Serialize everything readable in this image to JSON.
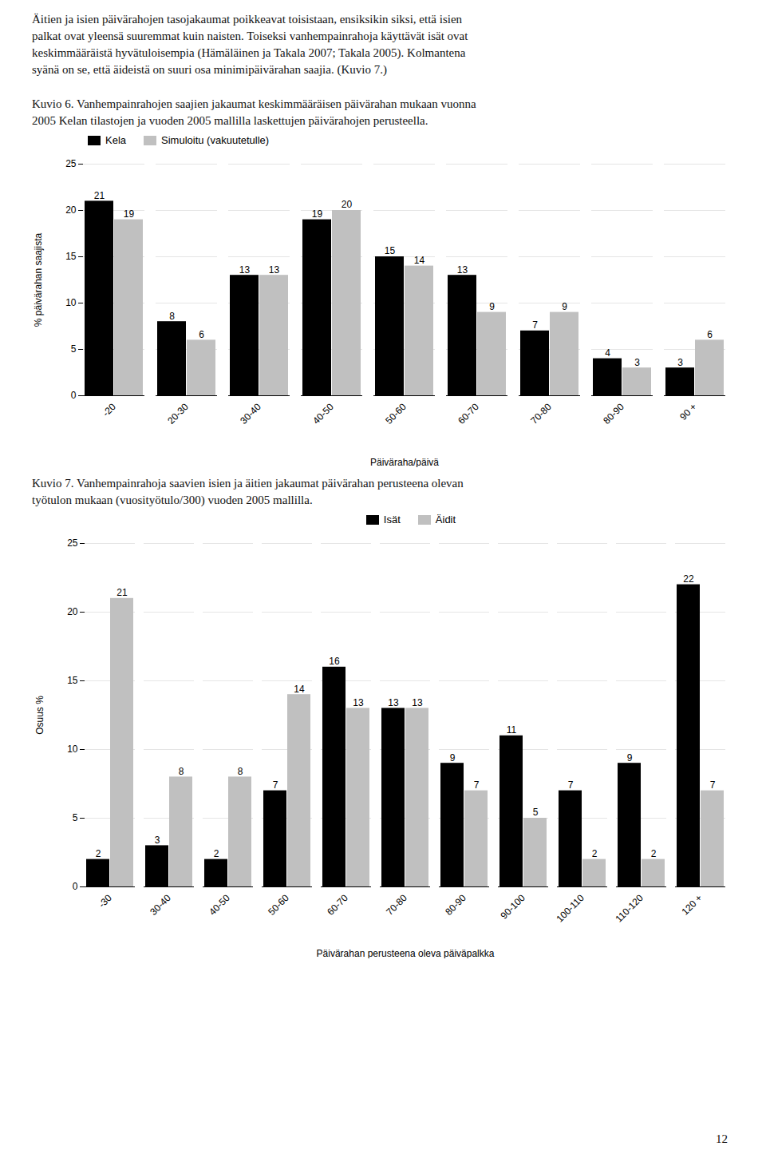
{
  "paragraph": "Äitien ja isien päivärahojen tasojakaumat poikkeavat toisistaan, ensiksikin siksi, että isien\npalkat ovat yleensä suuremmat kuin naisten. Toiseksi vanhempainrahoja käyttävät isät ovat\nkeskimmääräistä hyvätuloisempia (Hämäläinen ja Takala 2007; Takala 2005). Kolmantena\nsyänä on se, että äideistä on suuri osa minimipäivärahan saajia. (Kuvio 7.)",
  "page_number": "12",
  "chart_data": [
    {
      "type": "bar",
      "title": "Kuvio 6. Vanhempainrahojen saajien jakaumat keskimmääräisen päivärahan mukaan vuonna\n2005 Kelan tilastojen ja vuoden 2005 mallilla laskettujen päivärahojen perusteella.",
      "xlabel": "Päiväraha/päivä",
      "ylabel": "% päivärahan saajista",
      "categories": [
        "-20",
        "20-30",
        "30-40",
        "40-50",
        "50-60",
        "60-70",
        "70-80",
        "80-90",
        "90 +"
      ],
      "series": [
        {
          "name": "Kela",
          "color": "#000000",
          "values": [
            21,
            8,
            13,
            19,
            15,
            13,
            7,
            4,
            3
          ]
        },
        {
          "name": "Simuloitu (vakuutetulle)",
          "color": "#c0c0c0",
          "values": [
            19,
            6,
            13,
            20,
            14,
            9,
            9,
            3,
            6
          ]
        }
      ],
      "ylim": [
        0,
        25
      ],
      "yticks": [
        0,
        5,
        10,
        15,
        20,
        25
      ],
      "grid": true,
      "legend": "upper left",
      "data_labels": true
    },
    {
      "type": "bar",
      "title": "Kuvio 7. Vanhempainrahoja saavien isien ja äitien jakaumat päivärahan perusteena olevan\ntyötulon mukaan (vuosityötulo/300) vuoden 2005 mallilla.",
      "xlabel": "Päivärahan perusteena oleva päiväpalkka",
      "ylabel": "Osuus %",
      "categories": [
        "-30",
        "30-40",
        "40-50",
        "50-60",
        "60-70",
        "70-80",
        "80-90",
        "90-100",
        "100-110",
        "110-120",
        "120 +"
      ],
      "series": [
        {
          "name": "Isät",
          "color": "#000000",
          "values": [
            2,
            3,
            2,
            7,
            16,
            13,
            9,
            11,
            7,
            9,
            22
          ]
        },
        {
          "name": "Äidit",
          "color": "#c0c0c0",
          "values": [
            21,
            8,
            8,
            14,
            13,
            13,
            7,
            5,
            2,
            2,
            7
          ]
        }
      ],
      "ylim": [
        0,
        25
      ],
      "yticks": [
        0,
        5,
        10,
        15,
        20,
        25
      ],
      "grid": true,
      "legend": "upper center",
      "data_labels": true
    }
  ]
}
